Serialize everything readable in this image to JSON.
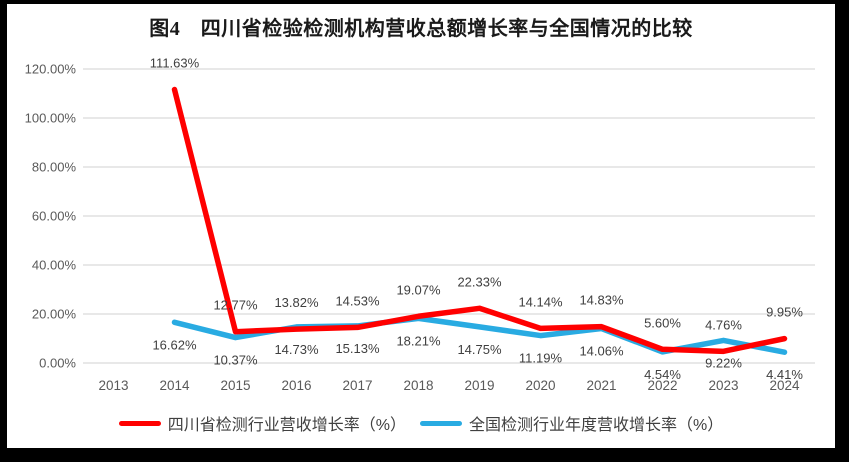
{
  "title": "图4　四川省检验检测机构营收总额增长率与全国情况的比较",
  "colors": {
    "sichuan": "#FF0000",
    "national": "#29ABE2",
    "grid": "#D9D9D9",
    "axis_text": "#595959",
    "data_label_text": "#3F3F3F",
    "title_text": "#1A1A1A",
    "frame": "#000000",
    "background": "#FFFFFF"
  },
  "chart_data": {
    "type": "line",
    "categories": [
      "2013",
      "2014",
      "2015",
      "2016",
      "2017",
      "2018",
      "2019",
      "2020",
      "2021",
      "2022",
      "2023",
      "2024"
    ],
    "series": [
      {
        "name": "四川省检测行业营收增长率（%）",
        "color_key": "sichuan",
        "label_position": "above",
        "values": [
          null,
          111.63,
          12.77,
          13.82,
          14.53,
          19.07,
          22.33,
          14.14,
          14.83,
          5.6,
          4.76,
          9.95
        ]
      },
      {
        "name": "全国检测行业年度营收增长率（%）",
        "color_key": "national",
        "label_position": "below",
        "values": [
          null,
          16.62,
          10.37,
          14.73,
          15.13,
          18.21,
          14.75,
          11.19,
          14.06,
          4.54,
          9.22,
          4.41
        ]
      }
    ],
    "title": "图4　四川省检验检测机构营收总额增长率与全国情况的比较",
    "xlabel": "",
    "ylabel": "",
    "ylim": [
      0,
      120
    ],
    "ytick_step": 20,
    "ytick_format": "percent_2dp",
    "grid": true,
    "legend_position": "bottom"
  }
}
